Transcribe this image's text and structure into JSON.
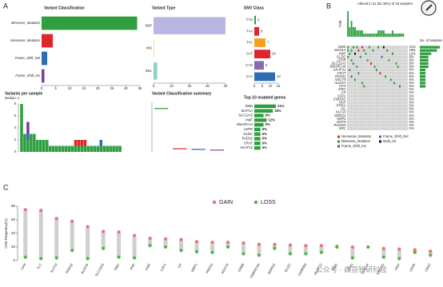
{
  "chart_data": [
    {
      "type": "hbar",
      "panel": "A",
      "title": "Variant Classification",
      "categories": [
        "Missense_Mutation",
        "Nonsense_Mutation",
        "Frame_Shift_Del",
        "Frame_Shift_Ins"
      ],
      "values": [
        34,
        4,
        2,
        1
      ],
      "colors": [
        "#2e9e3f",
        "#e0262b",
        "#2c6db5",
        "#7b3f98"
      ],
      "xlim": [
        0,
        35
      ],
      "xticks": [
        0,
        5,
        10,
        15,
        20,
        25,
        30,
        35
      ]
    },
    {
      "type": "hbar",
      "title": "Variant Type",
      "categories": [
        "SNP",
        "INS",
        "DEL"
      ],
      "values": [
        40,
        0.3,
        2
      ],
      "colors": [
        "#b9b6e3",
        "#f4cf4e",
        "#8dcfc4"
      ],
      "xlim": [
        0,
        40
      ],
      "xticks": [
        0,
        10,
        20,
        30,
        40
      ]
    },
    {
      "type": "hbar",
      "title": "SNV Class",
      "categories": [
        "T>G",
        "T>A",
        "T>C",
        "C>T",
        "C>G",
        "C>A"
      ],
      "values": [
        1,
        3,
        7,
        10,
        6,
        13
      ],
      "colors": [
        "#2e9e3f",
        "#e0262b",
        "#f6a021",
        "#e0262b",
        "#8a6bb0",
        "#2c6db5"
      ],
      "xlim": [
        0,
        15
      ],
      "xticks": [
        0,
        5,
        10,
        15
      ],
      "data_labels": true
    },
    {
      "type": "stacked",
      "title": "Variants per sample",
      "subtitle": "Median: 1",
      "ylim": [
        0,
        8
      ],
      "yticks": [
        0,
        2,
        4,
        6,
        8
      ],
      "series": [
        {
          "color": "#2e9e3f",
          "values": [
            8,
            3,
            2,
            3,
            3,
            2,
            2,
            2,
            2,
            1,
            1,
            1,
            1,
            1,
            1,
            1,
            1,
            1,
            1,
            1,
            1,
            1,
            1,
            1,
            1,
            1,
            1,
            1,
            1,
            1,
            1,
            1,
            0,
            0
          ]
        },
        {
          "color": "#e0262b",
          "values": [
            0,
            0,
            0,
            0,
            0,
            0,
            0,
            0,
            0,
            0,
            0,
            0,
            0,
            0,
            0,
            0,
            0,
            1,
            1,
            1,
            1,
            0,
            0,
            0,
            0,
            0,
            0,
            0,
            0,
            0,
            0,
            0,
            0,
            0
          ]
        },
        {
          "color": "#2c6db5",
          "values": [
            0,
            0,
            1,
            0,
            0,
            0,
            0,
            0,
            0,
            0,
            0,
            0,
            0,
            0,
            0,
            0,
            0,
            0,
            0,
            0,
            0,
            0,
            0,
            0,
            0,
            1,
            0,
            0,
            0,
            0,
            0,
            0,
            0,
            0
          ]
        },
        {
          "color": "#7b3f98",
          "values": [
            0,
            0,
            2,
            0,
            0,
            0,
            0,
            0,
            0,
            0,
            0,
            0,
            0,
            0,
            0,
            0,
            0,
            0,
            0,
            0,
            0,
            0,
            0,
            0,
            0,
            0,
            0,
            0,
            0,
            0,
            0,
            0,
            0,
            0
          ]
        }
      ]
    },
    {
      "type": "box",
      "title": "Variant Classification summary",
      "values": [
        7,
        0.5,
        0.4,
        0.3
      ],
      "colors": [
        "#2e9e3f",
        "#e0262b",
        "#2c6db5",
        "#7b3f98"
      ],
      "ylim": [
        0,
        8
      ]
    },
    {
      "type": "hbar",
      "title": "Top 10 mutated genes",
      "categories": [
        "DMD",
        "MAP1A",
        "SLC12A3",
        "VWF",
        "SMARCA4",
        "LEPR",
        "GLDC",
        "PADS2",
        "CRAT",
        "AKAP12"
      ],
      "values": [
        21,
        18,
        9,
        12,
        9,
        6,
        6,
        6,
        6,
        6
      ],
      "value_labels": [
        "21%",
        "18%",
        "9%",
        "12%",
        "9%",
        "6%",
        "6%",
        "6%",
        "6%",
        "6%"
      ],
      "color": "#2e9e3f",
      "xlim": [
        0,
        21
      ]
    },
    {
      "type": "oncoplot",
      "panel": "B",
      "title": "Altered in 31 (91.18%) of 34 samples.",
      "tmb_label": "TMB",
      "side_label": "No. of samples",
      "tmb": [
        8,
        3,
        5,
        3,
        3,
        2,
        2,
        2,
        2,
        1,
        1,
        1,
        1,
        1,
        1,
        1,
        1,
        2,
        2,
        2,
        2,
        1,
        1,
        1,
        1,
        2,
        1,
        1,
        1,
        1,
        1,
        1,
        0,
        0
      ],
      "genes": [
        "DMD",
        "MAP1A",
        "VWF",
        "GLDC",
        "LEPR",
        "SLC12A3",
        "SMARCA4",
        "AKAP12",
        "CRAT",
        "PADS2",
        "ADCY9",
        "ALDOA",
        "CFH",
        "ERG",
        "CP",
        "CSF1",
        "ENDOG",
        "HGF",
        "ITPKA",
        "IVL",
        "KLF10",
        "NDRG2",
        "NRP1",
        "NRTN",
        "PHGDH",
        "SRC"
      ],
      "percent": [
        21,
        18,
        12,
        9,
        9,
        9,
        9,
        6,
        6,
        6,
        6,
        6,
        6,
        0,
        0,
        0,
        0,
        0,
        0,
        0,
        0,
        0,
        0,
        0,
        0,
        0
      ],
      "percent_labels": [
        "21%",
        "18%",
        "12%",
        "9%",
        "9%",
        "9%",
        "9%",
        "6%",
        "6%",
        "6%",
        "6%",
        "6%",
        "6%",
        "0%",
        "0%",
        "0%",
        "0%",
        "0%",
        "0%",
        "0%",
        "0%",
        "0%",
        "0%",
        "0%",
        "0%",
        "0%"
      ],
      "classes": [
        {
          "name": "Nonsense_Mutation",
          "color": "#e0262b"
        },
        {
          "name": "Frame_Shift_Del",
          "color": "#2c6db5"
        },
        {
          "name": "Missense_Mutation",
          "color": "#2e9e3f"
        },
        {
          "name": "Multi_Hit",
          "color": "#111111"
        },
        {
          "name": "Frame_Shift_Ins",
          "color": "#7b3f98"
        }
      ],
      "cells": [
        [
          0,
          0,
          2
        ],
        [
          0,
          3,
          2
        ],
        [
          0,
          5,
          2
        ],
        [
          0,
          8,
          0
        ],
        [
          0,
          12,
          2
        ],
        [
          0,
          17,
          2
        ],
        [
          0,
          20,
          3
        ],
        [
          1,
          0,
          2
        ],
        [
          1,
          2,
          2
        ],
        [
          1,
          6,
          0
        ],
        [
          1,
          9,
          2
        ],
        [
          1,
          14,
          2
        ],
        [
          1,
          22,
          2
        ],
        [
          2,
          1,
          2
        ],
        [
          2,
          4,
          3
        ],
        [
          2,
          10,
          2
        ],
        [
          2,
          25,
          2
        ],
        [
          3,
          0,
          2
        ],
        [
          3,
          7,
          2
        ],
        [
          3,
          19,
          1
        ],
        [
          4,
          2,
          2
        ],
        [
          4,
          11,
          2
        ],
        [
          4,
          23,
          2
        ],
        [
          5,
          3,
          2
        ],
        [
          5,
          13,
          0
        ],
        [
          5,
          27,
          2
        ],
        [
          6,
          5,
          2
        ],
        [
          6,
          15,
          2
        ],
        [
          6,
          28,
          2
        ],
        [
          7,
          1,
          2
        ],
        [
          7,
          16,
          2
        ],
        [
          8,
          6,
          2
        ],
        [
          8,
          18,
          0
        ],
        [
          9,
          2,
          4
        ],
        [
          9,
          21,
          2
        ],
        [
          10,
          4,
          2
        ],
        [
          10,
          24,
          2
        ],
        [
          11,
          8,
          2
        ],
        [
          11,
          26,
          2
        ],
        [
          12,
          9,
          2
        ],
        [
          12,
          29,
          1
        ]
      ],
      "n_samples": 34
    },
    {
      "type": "dumbbell",
      "panel": "C",
      "ylabel": "CNV frequency(%)",
      "ylim": [
        0,
        80
      ],
      "yticks": [
        0,
        20,
        40,
        60,
        80
      ],
      "categories": [
        "CFH",
        "TLC",
        "KLF10",
        "PADS2",
        "ALDOA",
        "SLC12A3",
        "SMC",
        "PHF",
        "VWF",
        "CSF1",
        "CP",
        "NRP1",
        "PADS3",
        "ADCY9",
        "GRB9",
        "SMARCA4",
        "NDRG2",
        "GLDC",
        "GABRB3",
        "AKAP12",
        "DMD",
        "ERG",
        "MAP1A",
        "ENDOG",
        "HGF",
        "LEPR",
        "CRAT"
      ],
      "series": [
        {
          "name": "GAIN",
          "color": "#e8707a",
          "values": [
            75,
            74,
            62,
            58,
            50,
            43,
            42,
            37,
            33,
            32,
            31,
            28,
            27,
            27,
            26,
            24,
            24,
            23,
            22,
            22,
            21,
            20,
            20,
            18,
            17,
            16,
            14
          ]
        },
        {
          "name": "LOSS",
          "color": "#52b04a",
          "values": [
            5,
            3,
            4,
            15,
            3,
            18,
            5,
            4,
            22,
            20,
            15,
            13,
            12,
            20,
            10,
            8,
            18,
            10,
            10,
            12,
            20,
            4,
            20,
            5,
            3,
            12,
            8
          ]
        }
      ]
    }
  ],
  "watermark": "公众号 · 森哥智研科技"
}
